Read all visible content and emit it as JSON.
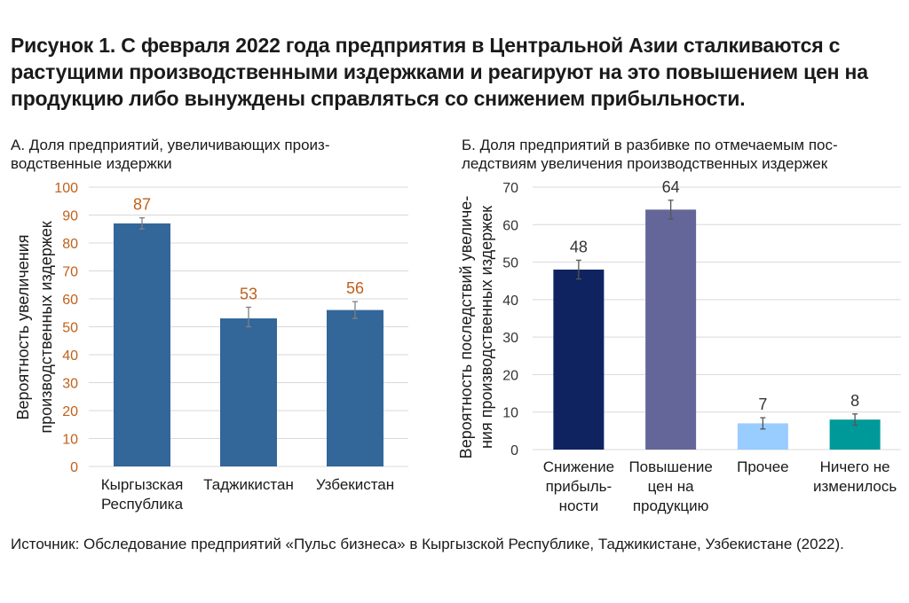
{
  "figure": {
    "title": "Рисунок 1. С февраля 2022 года предприятия в Центральной Азии сталкиваются с растущими производственными издержками и реагируют на это повышением цен на продукцию либо вынуждены справляться со снижением прибыльности.",
    "source": "Источник: Обследование предприятий «Пульс бизнеса» в Кыргызской Республике, Таджикистане, Узбекистане (2022)."
  },
  "chart_data": [
    {
      "type": "bar",
      "title": "А. Доля предприятий, увеличивающих производственные издержки",
      "title_lines": [
        "А. Доля предприятий, увеличивающих произ-",
        "водственные издержки"
      ],
      "ylabel": "Вероятность увеличения производственных издержек",
      "ylabel_lines": [
        "Вероятность увеличения",
        "производственных издержек"
      ],
      "categories": [
        "Кыргызская Республика",
        "Таджикистан",
        "Узбекистан"
      ],
      "category_lines": [
        [
          "Кыргызская",
          "Республика"
        ],
        [
          "Таджикистан"
        ],
        [
          "Узбекистан"
        ]
      ],
      "values": [
        87,
        53,
        56
      ],
      "error_bars": [
        [
          85,
          89
        ],
        [
          50,
          57
        ],
        [
          53,
          59
        ]
      ],
      "ylim": [
        0,
        100
      ],
      "yticks": [
        0,
        10,
        20,
        30,
        40,
        50,
        60,
        70,
        80,
        90,
        100
      ],
      "grid": true,
      "colors": {
        "bar": "#336699",
        "value_label": "#c0601a",
        "tick_label": "#c0601a",
        "error": "#808080"
      }
    },
    {
      "type": "bar",
      "title": "Б. Доля предприятий в разбивке по отмечаемым последствиям увеличения производственных издержек",
      "title_lines": [
        "Б. Доля предприятий в разбивке по отмечаемым пос-",
        "ледствиям увеличения производственных издержек"
      ],
      "ylabel": "Вероятность последствий увеличения производственных издержек",
      "ylabel_lines": [
        "Вероятность последствий увеличе-",
        "ния производственных издержек"
      ],
      "categories": [
        "Снижение прибыльности",
        "Повышение цен на продукцию",
        "Прочее",
        "Ничего не изменилось"
      ],
      "category_lines": [
        [
          "Снижение",
          "прибыль-",
          "ности"
        ],
        [
          "Повышение",
          "цен на",
          "продукцию"
        ],
        [
          "Прочее"
        ],
        [
          "Ничего не",
          "изменилось"
        ]
      ],
      "values": [
        48,
        64,
        7,
        8
      ],
      "error_bars": [
        [
          45.5,
          50.5
        ],
        [
          61.5,
          66.5
        ],
        [
          5.5,
          8.5
        ],
        [
          6.5,
          9.5
        ]
      ],
      "ylim": [
        0,
        70
      ],
      "yticks": [
        0,
        10,
        20,
        30,
        40,
        50,
        60,
        70
      ],
      "grid": true,
      "colors": {
        "bars": [
          "#0f2360",
          "#646699",
          "#99ccff",
          "#009999"
        ],
        "value_label": "#333333",
        "tick_label": "#333333",
        "error": "#555555"
      }
    }
  ]
}
